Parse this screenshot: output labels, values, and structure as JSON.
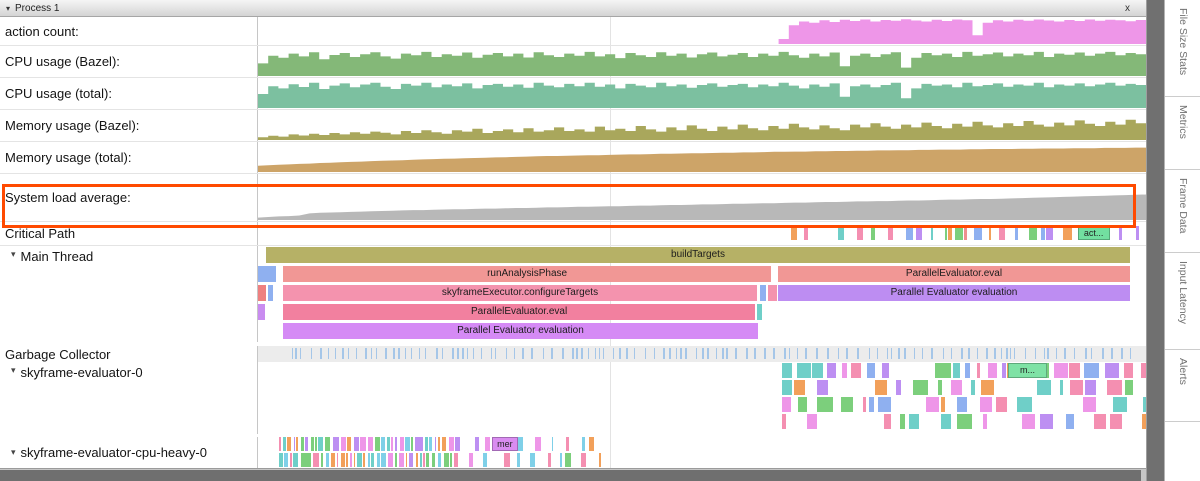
{
  "header": {
    "title": "Process 1",
    "close": "x",
    "collapse_icon": "▾"
  },
  "side_tabs": [
    "File Size Stats",
    "Metrics",
    "Frame Data",
    "Input Latency",
    "Alerts"
  ],
  "highlight_color": "#ff4a00",
  "counters": [
    {
      "label": "action count:",
      "color": "#ee96e8",
      "style": "step",
      "values": [
        0,
        0,
        0,
        0,
        0,
        0,
        0,
        0,
        0,
        0,
        0,
        0,
        0,
        0,
        0,
        0,
        0,
        0,
        0,
        0,
        0,
        0,
        0,
        0,
        0,
        0,
        0,
        0,
        0,
        0,
        0,
        0,
        0,
        0,
        0,
        0,
        0,
        0,
        0,
        0,
        0,
        0,
        0,
        0,
        0,
        0,
        0,
        0,
        0,
        0,
        0,
        0.2,
        0.75,
        0.9,
        0.85,
        0.95,
        0.88,
        0.97,
        0.92,
        0.98,
        0.9,
        0.96,
        0.93,
        0.99,
        0.94,
        0.9,
        0.97,
        0.92,
        0.98,
        0.95,
        0.35,
        0.85,
        0.95,
        0.9,
        0.97,
        0.93,
        0.98,
        0.94,
        0.9,
        0.96,
        0.92,
        0.98,
        0.93,
        0.97,
        0.95,
        0.91,
        0.96
      ]
    },
    {
      "label": "CPU usage (Bazel):",
      "color": "#84b878",
      "style": "step",
      "values": [
        0.45,
        0.72,
        0.65,
        0.8,
        0.7,
        0.85,
        0.6,
        0.75,
        0.82,
        0.68,
        0.78,
        0.85,
        0.7,
        0.62,
        0.8,
        0.74,
        0.86,
        0.68,
        0.78,
        0.72,
        0.84,
        0.65,
        0.76,
        0.82,
        0.7,
        0.8,
        0.66,
        0.85,
        0.74,
        0.68,
        0.8,
        0.72,
        0.86,
        0.7,
        0.78,
        0.64,
        0.82,
        0.74,
        0.68,
        0.85,
        0.72,
        0.8,
        0.66,
        0.78,
        0.84,
        0.7,
        0.76,
        0.82,
        0.68,
        0.8,
        0.72,
        0.86,
        0.74,
        0.65,
        0.8,
        0.7,
        0.84,
        0.35,
        0.72,
        0.8,
        0.68,
        0.78,
        0.85,
        0.3,
        0.65,
        0.82,
        0.74,
        0.8,
        0.68,
        0.86,
        0.72,
        0.78,
        0.84,
        0.7,
        0.8,
        0.74,
        0.86,
        0.68,
        0.8,
        0.76,
        0.84,
        0.72,
        0.8,
        0.86,
        0.74,
        0.82,
        0.78
      ]
    },
    {
      "label": "CPU usage (total):",
      "color": "#7cc0a0",
      "style": "step",
      "values": [
        0.5,
        0.78,
        0.7,
        0.85,
        0.75,
        0.9,
        0.68,
        0.8,
        0.88,
        0.74,
        0.84,
        0.9,
        0.76,
        0.68,
        0.86,
        0.8,
        0.9,
        0.74,
        0.84,
        0.78,
        0.88,
        0.7,
        0.82,
        0.86,
        0.76,
        0.84,
        0.72,
        0.9,
        0.8,
        0.74,
        0.86,
        0.78,
        0.9,
        0.76,
        0.84,
        0.7,
        0.86,
        0.8,
        0.74,
        0.9,
        0.78,
        0.84,
        0.72,
        0.82,
        0.88,
        0.76,
        0.82,
        0.86,
        0.74,
        0.84,
        0.78,
        0.9,
        0.8,
        0.7,
        0.84,
        0.76,
        0.88,
        0.4,
        0.78,
        0.84,
        0.74,
        0.82,
        0.9,
        0.35,
        0.7,
        0.86,
        0.8,
        0.84,
        0.74,
        0.9,
        0.78,
        0.82,
        0.88,
        0.76,
        0.84,
        0.8,
        0.9,
        0.74,
        0.84,
        0.8,
        0.88,
        0.78,
        0.84,
        0.9,
        0.8,
        0.86,
        0.82
      ]
    },
    {
      "label": "Memory usage (Bazel):",
      "color": "#a9a75c",
      "style": "step",
      "values": [
        0.1,
        0.15,
        0.12,
        0.2,
        0.16,
        0.22,
        0.18,
        0.25,
        0.2,
        0.28,
        0.22,
        0.3,
        0.26,
        0.2,
        0.32,
        0.25,
        0.35,
        0.28,
        0.22,
        0.35,
        0.3,
        0.4,
        0.25,
        0.32,
        0.38,
        0.28,
        0.42,
        0.3,
        0.35,
        0.45,
        0.32,
        0.38,
        0.3,
        0.48,
        0.35,
        0.4,
        0.32,
        0.5,
        0.38,
        0.3,
        0.45,
        0.35,
        0.52,
        0.4,
        0.32,
        0.48,
        0.38,
        0.55,
        0.42,
        0.35,
        0.5,
        0.4,
        0.58,
        0.45,
        0.38,
        0.52,
        0.42,
        0.35,
        0.55,
        0.45,
        0.6,
        0.48,
        0.4,
        0.55,
        0.45,
        0.62,
        0.5,
        0.42,
        0.58,
        0.48,
        0.65,
        0.52,
        0.45,
        0.6,
        0.5,
        0.68,
        0.55,
        0.48,
        0.62,
        0.52,
        0.7,
        0.58,
        0.5,
        0.65,
        0.55,
        0.72,
        0.6
      ]
    },
    {
      "label": "Memory usage (total):",
      "color": "#cda468",
      "style": "line",
      "values": [
        0.22,
        0.24,
        0.26,
        0.27,
        0.29,
        0.3,
        0.32,
        0.33,
        0.35,
        0.36,
        0.37,
        0.39,
        0.4,
        0.41,
        0.42,
        0.44,
        0.45,
        0.46,
        0.47,
        0.48,
        0.49,
        0.5,
        0.51,
        0.52,
        0.53,
        0.54,
        0.55,
        0.56,
        0.57,
        0.57,
        0.58,
        0.59,
        0.6,
        0.6,
        0.61,
        0.62,
        0.63,
        0.63,
        0.64,
        0.65,
        0.65,
        0.66,
        0.67,
        0.67,
        0.68,
        0.69,
        0.69,
        0.7,
        0.7,
        0.71,
        0.72,
        0.72,
        0.73,
        0.73,
        0.74,
        0.74,
        0.75,
        0.75,
        0.76,
        0.76,
        0.77,
        0.77,
        0.78,
        0.78,
        0.79,
        0.79,
        0.8,
        0.8,
        0.8,
        0.81,
        0.81,
        0.82,
        0.82,
        0.82,
        0.83,
        0.83,
        0.84,
        0.84,
        0.84,
        0.85,
        0.85,
        0.85,
        0.86,
        0.86,
        0.86,
        0.87,
        0.87
      ]
    },
    {
      "label": "System load average:",
      "color": "#b8b8b8",
      "style": "line",
      "values": [
        0.08,
        0.1,
        0.12,
        0.13,
        0.15,
        0.22,
        0.24,
        0.25,
        0.26,
        0.27,
        0.28,
        0.29,
        0.3,
        0.31,
        0.32,
        0.33,
        0.33,
        0.34,
        0.35,
        0.36,
        0.36,
        0.37,
        0.38,
        0.38,
        0.39,
        0.4,
        0.4,
        0.41,
        0.42,
        0.42,
        0.43,
        0.44,
        0.44,
        0.45,
        0.46,
        0.46,
        0.47,
        0.48,
        0.48,
        0.49,
        0.5,
        0.5,
        0.51,
        0.52,
        0.52,
        0.53,
        0.54,
        0.54,
        0.55,
        0.56,
        0.56,
        0.57,
        0.58,
        0.58,
        0.59,
        0.6,
        0.6,
        0.61,
        0.62,
        0.62,
        0.63,
        0.63,
        0.64,
        0.65,
        0.65,
        0.66,
        0.67,
        0.68,
        0.68,
        0.69,
        0.7,
        0.7,
        0.71,
        0.72,
        0.73,
        0.74,
        0.75,
        0.76,
        0.77,
        0.78,
        0.79,
        0.8,
        0.81,
        0.82,
        0.83,
        0.84,
        0.85
      ]
    }
  ],
  "critical_path": {
    "label": "Critical Path",
    "chip": {
      "text": "act...",
      "color": "#72dfa0",
      "x": 0.923,
      "w": 0.036,
      "row": 0
    },
    "extra": [
      {
        "x": 0.6,
        "w": 0.007,
        "c": "#f2a05a"
      },
      {
        "x": 0.615,
        "w": 0.004,
        "c": "#f48fb1"
      }
    ],
    "gen": {
      "seed": 42,
      "region": [
        0.653,
        0.99
      ],
      "min_w": 2,
      "max_w": 9,
      "max_gap": 14
    },
    "palette": [
      "#f2a05a",
      "#f48fb1",
      "#8fb0f0",
      "#6fcfc8",
      "#7ccf7c",
      "#bd8ff2",
      "#ef8f8f",
      "#ee96e8"
    ]
  },
  "main_thread": {
    "label": "Main Thread",
    "rows": [
      [
        {
          "t": "buildTargets",
          "x": 0.009,
          "w": 0.973,
          "c": "#b6b166"
        }
      ],
      [
        {
          "t": "",
          "x": 0.0,
          "w": 0.02,
          "c": "#8fb0f0"
        },
        {
          "t": "runAnalysisPhase",
          "x": 0.028,
          "w": 0.55,
          "c": "#f19795"
        },
        {
          "t": "ParallelEvaluator.eval",
          "x": 0.5856,
          "w": 0.3964,
          "c": "#f19795"
        }
      ],
      [
        {
          "t": "",
          "x": 0.0,
          "w": 0.009,
          "c": "#ee8080"
        },
        {
          "t": "",
          "x": 0.0113,
          "w": 0.0056,
          "c": "#8fb0f0"
        },
        {
          "t": "skyframeExecutor.configureTargets",
          "x": 0.028,
          "w": 0.534,
          "c": "#f493ae"
        },
        {
          "t": "",
          "x": 0.565,
          "w": 0.007,
          "c": "#8fb0f0"
        },
        {
          "t": "",
          "x": 0.574,
          "w": 0.01,
          "c": "#f493ae"
        },
        {
          "t": "Parallel Evaluator evaluation",
          "x": 0.5856,
          "w": 0.3964,
          "c": "#bd8df2"
        }
      ],
      [
        {
          "t": "",
          "x": 0.0,
          "w": 0.008,
          "c": "#c98cf0"
        },
        {
          "t": "ParallelEvaluator.eval",
          "x": 0.028,
          "w": 0.532,
          "c": "#f2809f"
        },
        {
          "t": "",
          "x": 0.562,
          "w": 0.006,
          "c": "#6fcfc8"
        }
      ],
      [
        {
          "t": "Parallel Evaluator evaluation",
          "x": 0.028,
          "w": 0.535,
          "c": "#d58af5"
        }
      ]
    ]
  },
  "garbage_collector": {
    "label": "Garbage Collector",
    "tick_color": "#a5c6e8",
    "gen": {
      "seed": 7,
      "region": [
        0.038,
        0.988
      ],
      "tick_w": 1.6,
      "min_gap": 2,
      "max_gap": 8
    }
  },
  "skyframe0": {
    "label": "skyframe-evaluator-0",
    "chip": {
      "text": "m...",
      "color": "#7fe2a5",
      "x": 0.845,
      "w": 0.043,
      "row": 0
    },
    "gen": {
      "seed": 11,
      "region": [
        0.59,
        0.998
      ],
      "min_w": 3,
      "max_w": 16,
      "max_gap": 8,
      "cluster_gap_p": 0.1,
      "cluster_gap": 35,
      "row_gap_scale": 0.55
    },
    "palette": [
      "#f48fb1",
      "#ee96e8",
      "#7ccf7c",
      "#6fcfc8",
      "#bd8ff2",
      "#8fb0f0",
      "#f2a05a"
    ]
  },
  "cpu_heavy": {
    "label": "skyframe-evaluator-cpu-heavy-0",
    "chip": {
      "text": "mer",
      "color": "#d98cf0",
      "x": 0.2635,
      "w": 0.029,
      "row": 0
    },
    "gen": {
      "seed": 23,
      "region": [
        0.024,
        0.39
      ],
      "min_w": 1.5,
      "max_w": 6,
      "max_gap": 2.5,
      "sparse_after": 0.22,
      "sparse_gap": 18
    },
    "palette": [
      "#f48fb1",
      "#ee96e8",
      "#6fcfc8",
      "#7fd0e8",
      "#bd8ff2",
      "#7ccf7c",
      "#f2a05a"
    ]
  }
}
